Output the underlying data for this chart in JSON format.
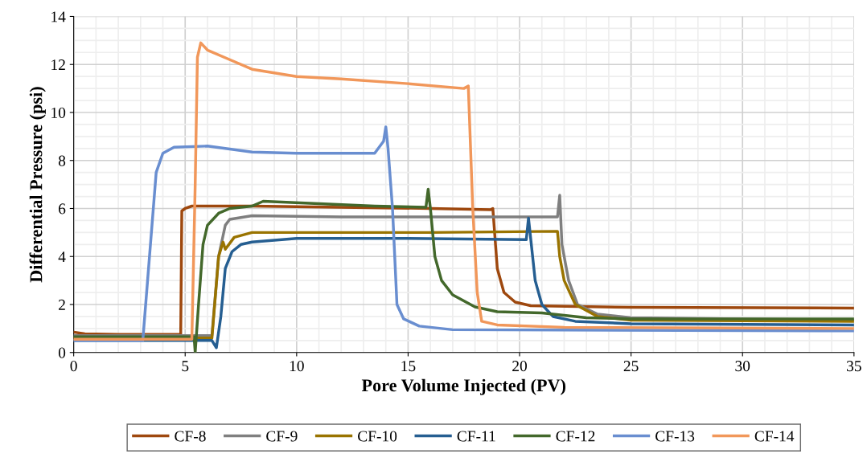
{
  "chart_data": {
    "type": "line",
    "xlabel": "Pore Volume Injected (PV)",
    "ylabel": "Differential Pressure (psi)",
    "xlim": [
      0,
      35
    ],
    "xticks": [
      0,
      5,
      10,
      15,
      20,
      25,
      30,
      35
    ],
    "ylim": [
      0,
      14
    ],
    "yticks": [
      0,
      2,
      4,
      6,
      8,
      10,
      12,
      14
    ],
    "grid": true,
    "legend": "bottom",
    "marker": "none",
    "line_style": "solid",
    "series": [
      {
        "name": "CF-8",
        "color": "#9e480e",
        "x": [
          0,
          0.5,
          2,
          4.8,
          4.85,
          5.0,
          5.3,
          8,
          12,
          16,
          18.7,
          18.8,
          19.0,
          19.3,
          19.8,
          20.5,
          25,
          35
        ],
        "values": [
          0.85,
          0.78,
          0.75,
          0.75,
          5.9,
          6.0,
          6.1,
          6.1,
          6.05,
          6.0,
          5.95,
          6.0,
          3.5,
          2.5,
          2.1,
          1.95,
          1.88,
          1.85
        ]
      },
      {
        "name": "CF-9",
        "color": "#7f7f7f",
        "x": [
          0,
          6.2,
          6.5,
          6.8,
          7,
          8,
          12,
          16,
          21.7,
          21.8,
          21.9,
          22.2,
          22.6,
          23.5,
          25,
          35
        ],
        "values": [
          0.7,
          0.7,
          4.0,
          5.3,
          5.55,
          5.7,
          5.65,
          5.65,
          5.65,
          6.55,
          4.5,
          3.0,
          2.0,
          1.6,
          1.45,
          1.35
        ]
      },
      {
        "name": "CF-10",
        "color": "#997300",
        "x": [
          0,
          6.2,
          6.5,
          6.7,
          6.8,
          7.2,
          8,
          12,
          16,
          21.7,
          21.8,
          22.0,
          22.5,
          23.5,
          25,
          35
        ],
        "values": [
          0.6,
          0.6,
          4.0,
          4.6,
          4.3,
          4.8,
          5.0,
          5.0,
          5.0,
          5.05,
          4.0,
          3.0,
          2.0,
          1.5,
          1.35,
          1.3
        ]
      },
      {
        "name": "CF-11",
        "color": "#255e91",
        "x": [
          0,
          6.2,
          6.4,
          6.6,
          6.8,
          7.1,
          7.5,
          8,
          10,
          15,
          20.3,
          20.4,
          20.7,
          21,
          21.5,
          22.5,
          25,
          35
        ],
        "values": [
          0.5,
          0.5,
          0.2,
          1.5,
          3.5,
          4.2,
          4.5,
          4.6,
          4.75,
          4.75,
          4.7,
          5.6,
          3.0,
          2.0,
          1.5,
          1.3,
          1.2,
          1.15
        ]
      },
      {
        "name": "CF-12",
        "color": "#43682b",
        "x": [
          0,
          5.4,
          5.45,
          5.6,
          5.8,
          6.0,
          6.5,
          7,
          8,
          8.5,
          11,
          13.5,
          15.8,
          15.9,
          16.0,
          16.2,
          16.5,
          17,
          18,
          19,
          21,
          23,
          25,
          35
        ],
        "values": [
          0.65,
          0.65,
          0.0,
          2.0,
          4.5,
          5.3,
          5.8,
          6.0,
          6.1,
          6.3,
          6.2,
          6.1,
          6.05,
          6.8,
          6.0,
          4.0,
          3.0,
          2.4,
          1.9,
          1.7,
          1.65,
          1.45,
          1.4,
          1.4
        ]
      },
      {
        "name": "CF-13",
        "color": "#698ed0",
        "x": [
          0,
          3.1,
          3.4,
          3.7,
          4.0,
          4.5,
          6,
          8,
          10,
          13.5,
          13.9,
          14.0,
          14.1,
          14.3,
          14.5,
          14.8,
          15.5,
          17,
          35
        ],
        "values": [
          0.5,
          0.5,
          4.0,
          7.5,
          8.3,
          8.55,
          8.6,
          8.35,
          8.3,
          8.3,
          8.8,
          9.4,
          8.5,
          6.0,
          2.0,
          1.4,
          1.1,
          0.95,
          0.9
        ]
      },
      {
        "name": "CF-14",
        "color": "#f1975a",
        "x": [
          0,
          5.3,
          5.45,
          5.55,
          5.7,
          6,
          7,
          8,
          10,
          12,
          15,
          17.5,
          17.7,
          17.9,
          18.1,
          18.3,
          19,
          22,
          35
        ],
        "values": [
          0.55,
          0.55,
          7.0,
          12.3,
          12.9,
          12.6,
          12.2,
          11.8,
          11.5,
          11.4,
          11.2,
          11.0,
          11.1,
          6.0,
          2.5,
          1.3,
          1.15,
          1.05,
          1.0
        ]
      }
    ]
  }
}
